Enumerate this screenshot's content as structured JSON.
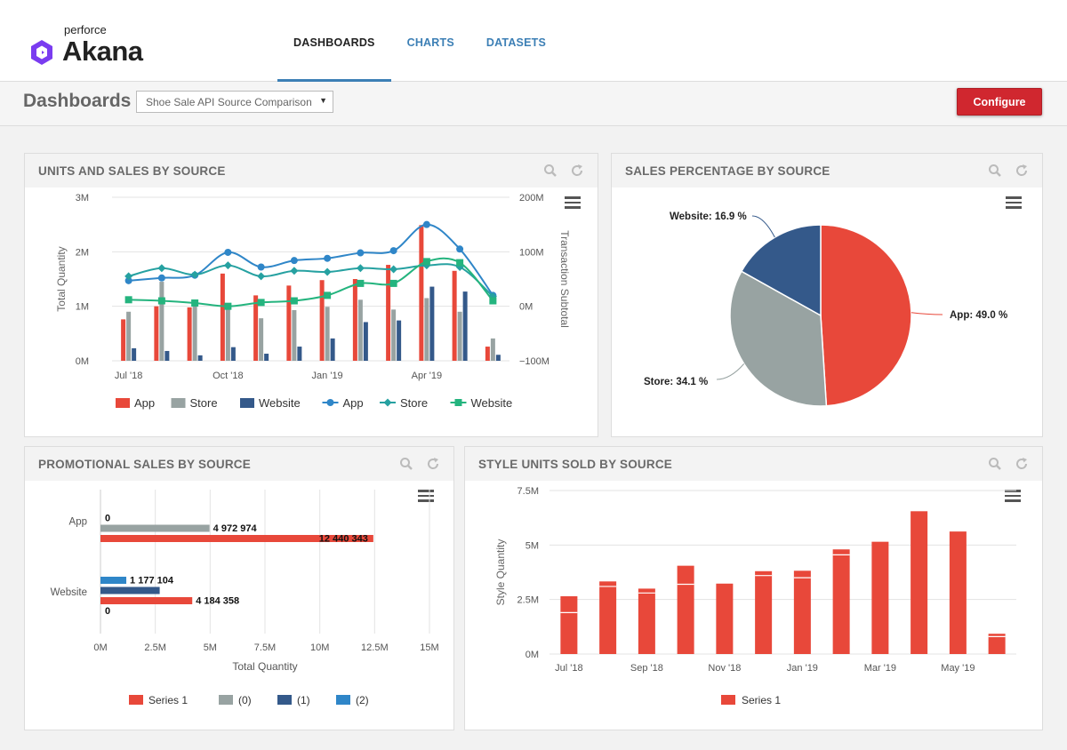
{
  "brand": {
    "company": "perforce",
    "product": "Akana"
  },
  "nav": {
    "tabs": [
      {
        "label": "DASHBOARDS"
      },
      {
        "label": "CHARTS"
      },
      {
        "label": "DATASETS"
      }
    ]
  },
  "page": {
    "title": "Dashboards",
    "dashboard_select": "Shoe Sale API Source Comparison",
    "configure_label": "Configure"
  },
  "colors": {
    "red": "#e8483a",
    "gray": "#98a3a2",
    "navy": "#34598a",
    "blue": "#2f86c8",
    "teal": "#26a1a1",
    "green": "#24b47e",
    "accent": "#3c7fb5"
  },
  "panels": {
    "units": {
      "title": "UNITS AND SALES BY SOURCE"
    },
    "percentage": {
      "title": "SALES PERCENTAGE BY SOURCE"
    },
    "promo": {
      "title": "PROMOTIONAL SALES BY SOURCE"
    },
    "style": {
      "title": "STYLE UNITS SOLD BY SOURCE"
    }
  },
  "chart_data": [
    {
      "id": "units",
      "type": "bar",
      "title": "UNITS AND SALES BY SOURCE",
      "ylabel": "Total Quantity",
      "y2label": "Transaction Subtotal",
      "ylim": [
        0,
        3000000
      ],
      "y2lim": [
        -100000000,
        200000000
      ],
      "y_ticks": [
        "0M",
        "1M",
        "2M",
        "3M"
      ],
      "y2_ticks": [
        "−100M",
        "0M",
        "100M",
        "200M"
      ],
      "x_tick_labels": [
        {
          "label": "Jul '18",
          "index": 0
        },
        {
          "label": "Oct '18",
          "index": 3
        },
        {
          "label": "Jan '19",
          "index": 6
        },
        {
          "label": "Apr '19",
          "index": 9
        }
      ],
      "periods": 12,
      "bar_series": [
        {
          "name": "App",
          "color": "#e8483a",
          "values": [
            760000,
            1000000,
            980000,
            1600000,
            1200000,
            1380000,
            1480000,
            1500000,
            1760000,
            2490000,
            1650000,
            260000
          ]
        },
        {
          "name": "Store",
          "color": "#98a3a2",
          "values": [
            900000,
            1450000,
            1000000,
            1000000,
            780000,
            930000,
            990000,
            1120000,
            940000,
            1150000,
            900000,
            410000
          ]
        },
        {
          "name": "Website",
          "color": "#34598a",
          "values": [
            230000,
            180000,
            100000,
            250000,
            130000,
            260000,
            410000,
            710000,
            740000,
            1360000,
            1270000,
            110000
          ]
        }
      ],
      "line_series": [
        {
          "name": "App",
          "color": "#2f86c8",
          "marker": "circle",
          "values": [
            47000000,
            52000000,
            57000000,
            99000000,
            72000000,
            84000000,
            88000000,
            98000000,
            102000000,
            150000000,
            105000000,
            20000000
          ]
        },
        {
          "name": "Store",
          "color": "#26a1a1",
          "marker": "diamond",
          "values": [
            55000000,
            70000000,
            58000000,
            75000000,
            55000000,
            65000000,
            63000000,
            70000000,
            68000000,
            75000000,
            72000000,
            18000000
          ]
        },
        {
          "name": "Website",
          "color": "#24b47e",
          "marker": "square",
          "values": [
            12000000,
            10000000,
            6000000,
            0,
            7000000,
            10000000,
            20000000,
            42000000,
            42000000,
            82000000,
            80000000,
            10000000
          ]
        }
      ],
      "legend": [
        "App",
        "Store",
        "Website",
        "App",
        "Store",
        "Website"
      ]
    },
    {
      "id": "percentage",
      "type": "pie",
      "title": "SALES PERCENTAGE BY SOURCE",
      "slices": [
        {
          "label": "App",
          "value": 49.0,
          "display": "App: 49.0 %",
          "color": "#e8483a"
        },
        {
          "label": "Store",
          "value": 34.1,
          "display": "Store: 34.1 %",
          "color": "#98a3a2"
        },
        {
          "label": "Website",
          "value": 16.9,
          "display": "Website: 16.9 %",
          "color": "#34598a"
        }
      ]
    },
    {
      "id": "promo",
      "type": "bar",
      "orientation": "horizontal",
      "title": "PROMOTIONAL SALES BY SOURCE",
      "categories": [
        "App",
        "Website"
      ],
      "xlabel": "Total Quantity",
      "xlim": [
        0,
        15000000
      ],
      "x_ticks": [
        "0M",
        "2.5M",
        "5M",
        "7.5M",
        "10M",
        "12.5M",
        "15M"
      ],
      "series": [
        {
          "name": "Series 1",
          "color": "#e8483a",
          "values": [
            12440343,
            4184358
          ],
          "labels": [
            "12 440 343",
            "4 184 358"
          ]
        },
        {
          "name": "(0)",
          "color": "#98a3a2",
          "values": [
            4972974,
            0
          ],
          "labels": [
            "4 972 974",
            "0"
          ]
        },
        {
          "name": "(1)",
          "color": "#34598a",
          "values": [
            0,
            2700000
          ],
          "labels": [
            "0",
            ""
          ]
        },
        {
          "name": "(2)",
          "color": "#2f86c8",
          "values": [
            0,
            1177104
          ],
          "labels": [
            "",
            "1 177 104"
          ]
        }
      ],
      "bar_order": {
        "App": [
          "(1)",
          "(0)",
          "Series 1"
        ],
        "Website": [
          "(2)",
          "(1)",
          "Series 1",
          "(0)"
        ]
      },
      "legend": [
        "Series 1",
        "(0)",
        "(1)",
        "(2)"
      ]
    },
    {
      "id": "style",
      "type": "bar",
      "title": "STYLE UNITS SOLD BY SOURCE",
      "ylabel": "Style Quantity",
      "ylim": [
        0,
        7500000
      ],
      "y_ticks": [
        "0M",
        "2.5M",
        "5M",
        "7.5M"
      ],
      "x_tick_labels": [
        {
          "label": "Jul '18",
          "index": 0
        },
        {
          "label": "Sep '18",
          "index": 2
        },
        {
          "label": "Nov '18",
          "index": 4
        },
        {
          "label": "Jan '19",
          "index": 6
        },
        {
          "label": "Mar '19",
          "index": 8
        },
        {
          "label": "May '19",
          "index": 10
        }
      ],
      "series": [
        {
          "name": "Series 1",
          "color": "#e8483a",
          "values": [
            2650000,
            3330000,
            3000000,
            4050000,
            3230000,
            3800000,
            3820000,
            4800000,
            5150000,
            6550000,
            5620000,
            930000
          ],
          "stack_split": [
            1900000,
            3100000,
            2800000,
            3200000,
            0,
            3600000,
            3500000,
            4550000,
            0,
            0,
            0,
            800000
          ]
        }
      ],
      "legend": [
        "Series 1"
      ]
    }
  ]
}
